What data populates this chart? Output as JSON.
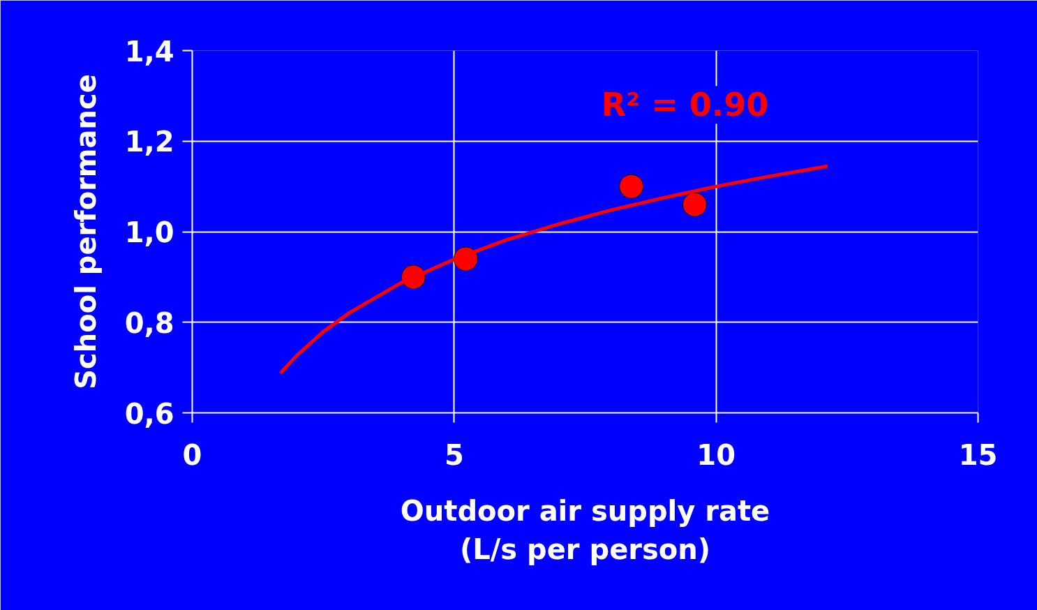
{
  "chart_data": {
    "type": "scatter",
    "xlabel": "Outdoor air supply rate\n(L/s per person)",
    "ylabel": "School performance",
    "annotations": [
      "R² = 0.90"
    ],
    "xlim": [
      0,
      15
    ],
    "ylim": [
      0.6,
      1.4
    ],
    "xticks": [
      0,
      5,
      10,
      15
    ],
    "yticks": [
      {
        "value": 0.6,
        "label": "0,6"
      },
      {
        "value": 0.8,
        "label": "0,8"
      },
      {
        "value": 1.0,
        "label": "1,0"
      },
      {
        "value": 1.2,
        "label": "1,2"
      },
      {
        "value": 1.4,
        "label": "1,4"
      }
    ],
    "grid": true,
    "marker": "circle",
    "series": [
      {
        "color": "#ff0000",
        "x": [
          4.22,
          5.22,
          8.38,
          9.59
        ],
        "values": [
          0.9,
          0.94,
          1.1,
          1.06
        ]
      },
      {
        "type": "line",
        "color": "#ff0000",
        "line_style": "solid",
        "marker": "none",
        "x": [
          1.7,
          2,
          2.5,
          3,
          4,
          5,
          6,
          7,
          8,
          9,
          10,
          11,
          12.1
        ],
        "values": [
          0.69,
          0.727,
          0.779,
          0.821,
          0.888,
          0.939,
          0.982,
          1.017,
          1.048,
          1.075,
          1.1,
          1.122,
          1.144
        ]
      }
    ]
  }
}
